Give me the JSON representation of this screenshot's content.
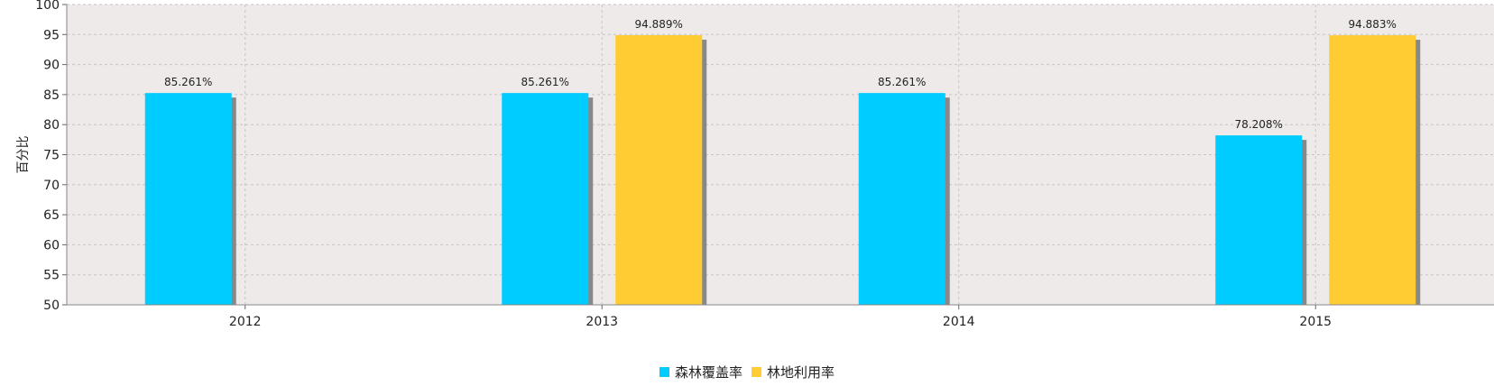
{
  "chart_data": {
    "type": "bar",
    "title": "",
    "xlabel": "",
    "ylabel": "百分比",
    "ylim": [
      50,
      100
    ],
    "yticks": [
      50,
      55,
      60,
      65,
      70,
      75,
      80,
      85,
      90,
      95,
      100
    ],
    "categories": [
      "2012",
      "2013",
      "2014",
      "2015"
    ],
    "series": [
      {
        "name": "森林覆盖率",
        "color": "#00CCFF",
        "values": [
          85.261,
          85.261,
          85.261,
          78.208
        ],
        "labels": [
          "85.261%",
          "85.261%",
          "85.261%",
          "78.208%"
        ]
      },
      {
        "name": "林地利用率",
        "color": "#FFCC33",
        "values": [
          null,
          94.889,
          null,
          94.883
        ],
        "labels": [
          "",
          "94.889%",
          "",
          "94.883%"
        ]
      }
    ],
    "grid": true,
    "legend_position": "bottom-center",
    "plot_background": "#EEEAE9",
    "shadow_color": "#888888"
  }
}
